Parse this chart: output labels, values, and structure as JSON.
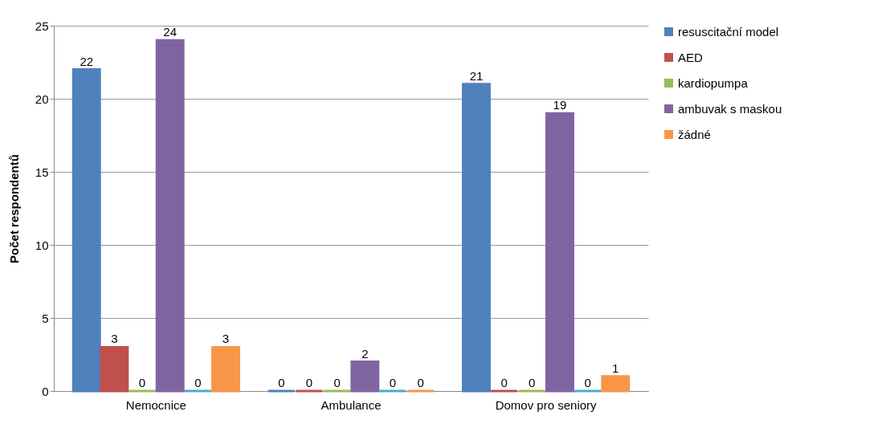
{
  "chart_data": {
    "type": "bar",
    "ylabel": "Počet respondentů",
    "categories": [
      "Nemocnice",
      "Ambulance",
      "Domov pro seniory"
    ],
    "series": [
      {
        "name": "resuscitační model",
        "color": "#4f81bd",
        "values": [
          22,
          0,
          21
        ]
      },
      {
        "name": "AED",
        "color": "#c0504d",
        "values": [
          3,
          0,
          0
        ]
      },
      {
        "name": "kardiopumpa",
        "color": "#9bbb59",
        "values": [
          0,
          0,
          0
        ]
      },
      {
        "name": "ambuvak s maskou",
        "color": "#8064a2",
        "values": [
          24,
          2,
          19
        ]
      },
      {
        "color": "#4bacc6",
        "values": [
          0,
          0,
          0
        ]
      },
      {
        "name": "žádné",
        "color": "#f79646",
        "values": [
          3,
          0,
          1
        ]
      }
    ],
    "ylim": [
      0,
      25
    ],
    "yticks": [
      0,
      5,
      10,
      15,
      20,
      25
    ],
    "grid": "y",
    "legend": "right",
    "data_labels": true
  }
}
